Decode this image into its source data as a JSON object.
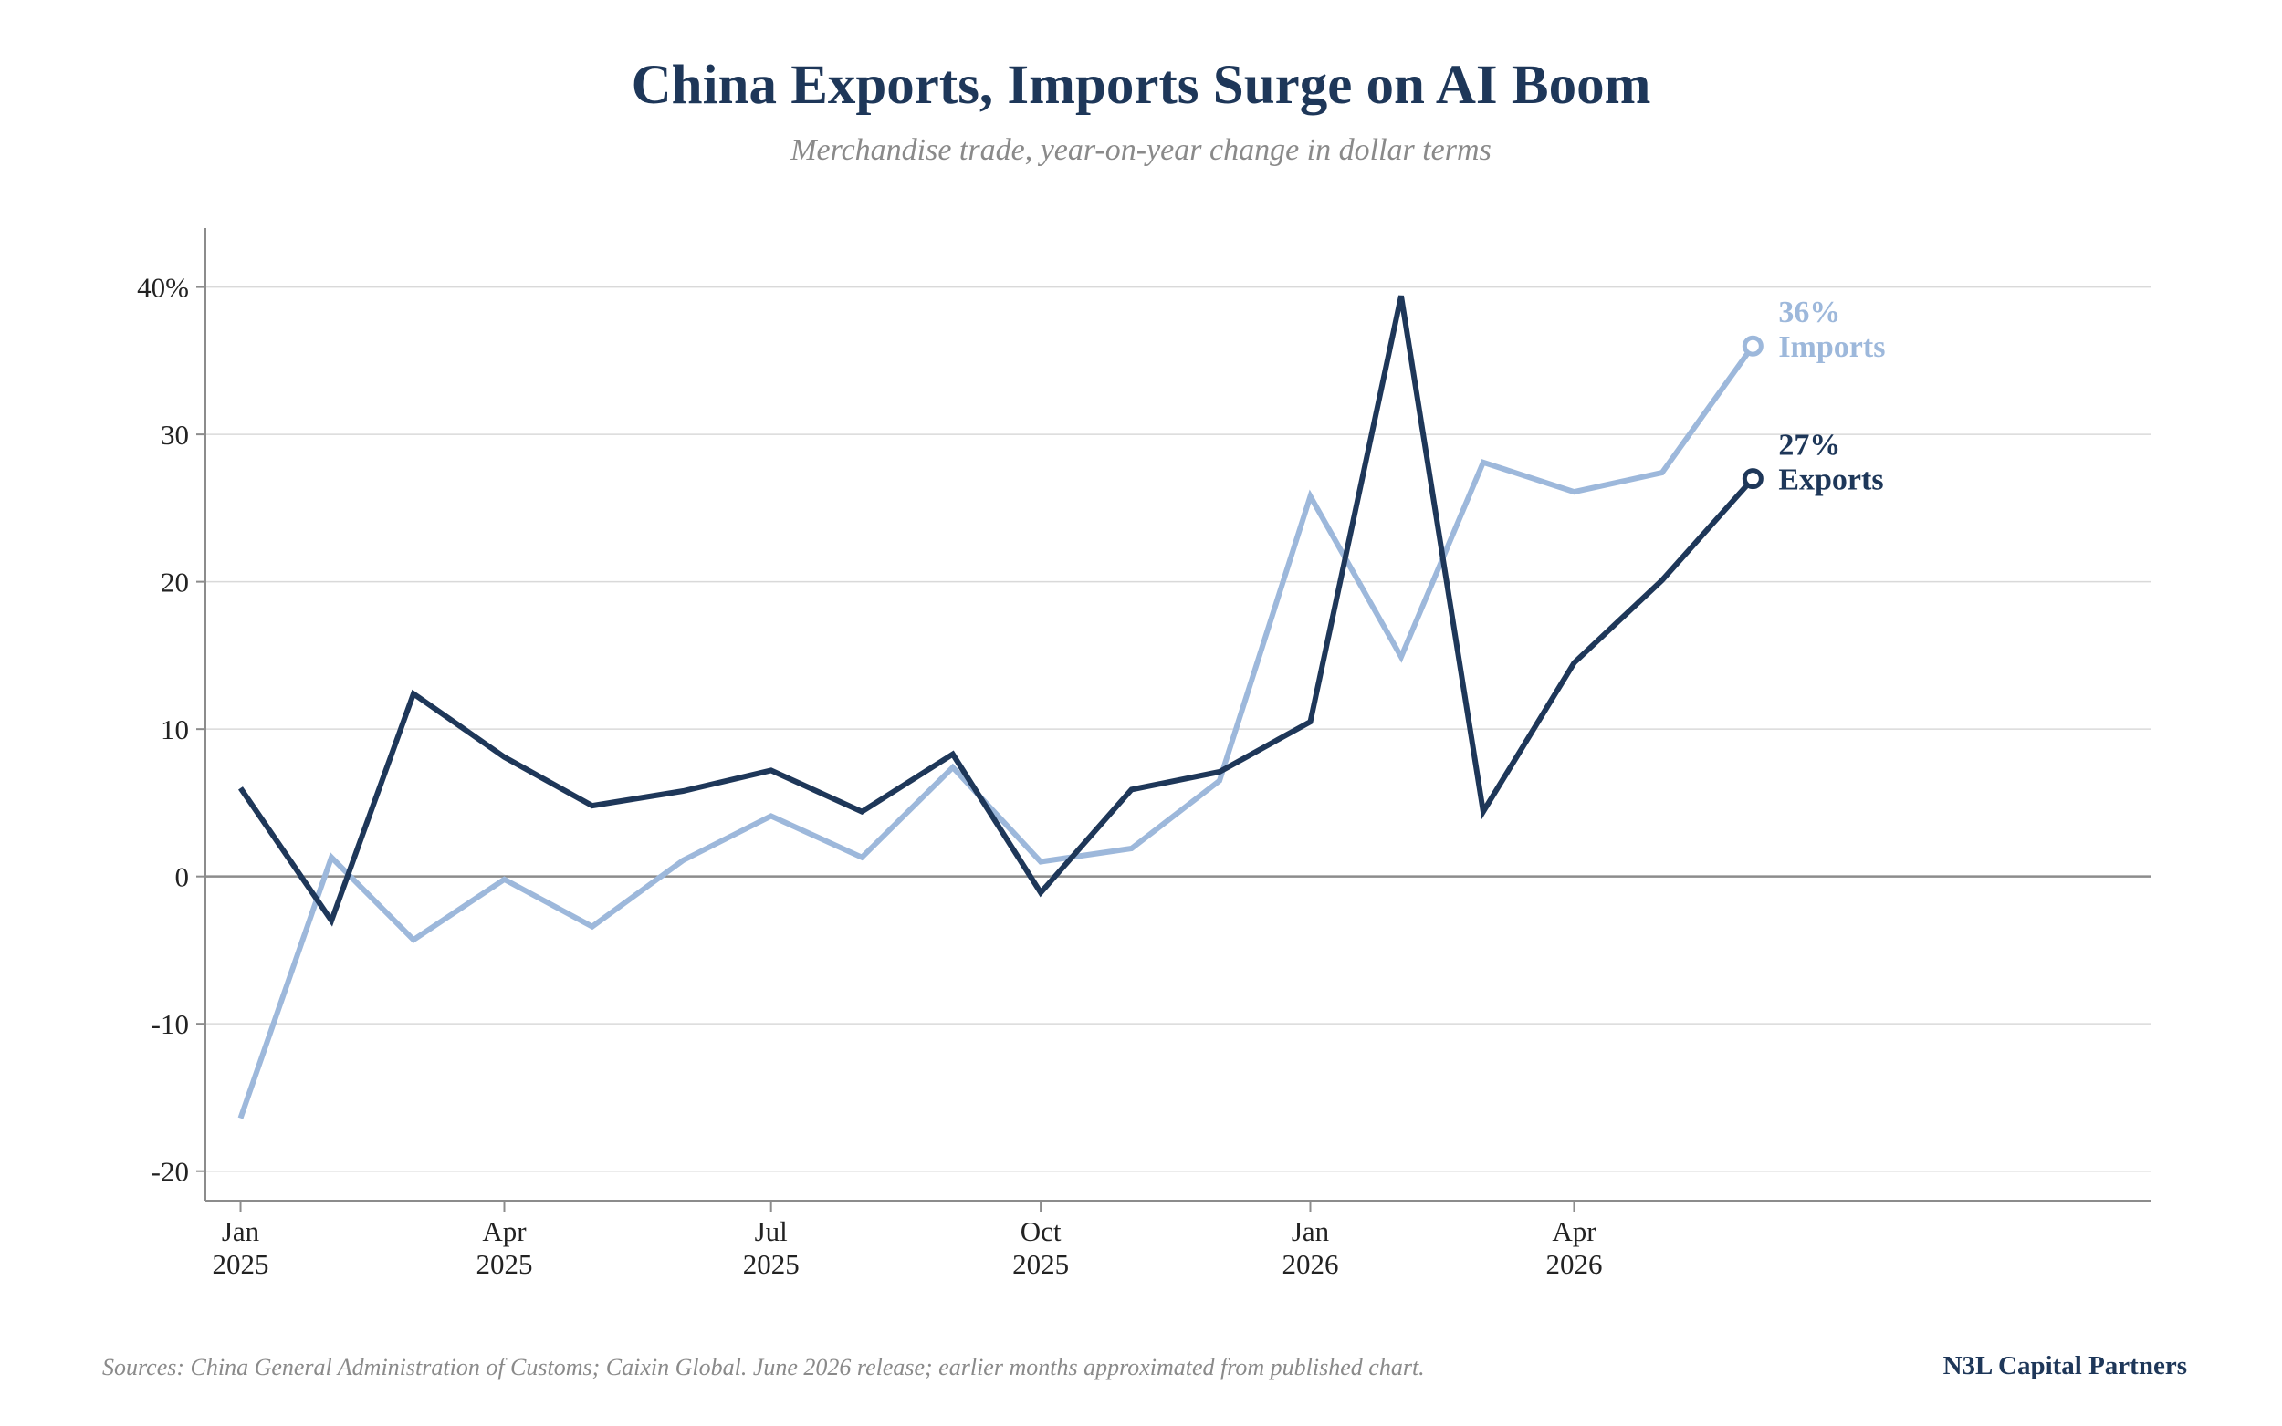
{
  "chart_data": {
    "type": "line",
    "title": "China Exports, Imports Surge on AI Boom",
    "subtitle": "Merchandise trade, year-on-year change in dollar terms",
    "xlabel": "",
    "ylabel": "",
    "ylim": [
      -22,
      44
    ],
    "xlim": [
      "2024-12-20",
      "2026-10-15"
    ],
    "grid": true,
    "legend": "inline end labels",
    "x": [
      "2025-01",
      "2025-02",
      "2025-03",
      "2025-04",
      "2025-05",
      "2025-06",
      "2025-07",
      "2025-08",
      "2025-09",
      "2025-10",
      "2025-11",
      "2025-12",
      "2026-01",
      "2026-02",
      "2026-03",
      "2026-04",
      "2026-05",
      "2026-06"
    ],
    "x_ticks": [
      {
        "x": "2025-01",
        "month": "Jan",
        "year": "2025"
      },
      {
        "x": "2025-04",
        "month": "Apr",
        "year": "2025"
      },
      {
        "x": "2025-07",
        "month": "Jul",
        "year": "2025"
      },
      {
        "x": "2025-10",
        "month": "Oct",
        "year": "2025"
      },
      {
        "x": "2026-01",
        "month": "Jan",
        "year": "2026"
      },
      {
        "x": "2026-04",
        "month": "Apr",
        "year": "2026"
      }
    ],
    "y_ticks": [
      {
        "value": 40,
        "label": "40%"
      },
      {
        "value": 30,
        "label": "30"
      },
      {
        "value": 20,
        "label": "20"
      },
      {
        "value": 10,
        "label": "10"
      },
      {
        "value": 0,
        "label": "0"
      },
      {
        "value": -10,
        "label": "-10"
      },
      {
        "value": -20,
        "label": "-20"
      }
    ],
    "series": [
      {
        "name": "Exports",
        "end_value_label": "27%",
        "color": "#1e3759",
        "values": [
          6.0,
          -3.0,
          12.4,
          8.1,
          4.8,
          5.8,
          7.2,
          4.4,
          8.3,
          -1.1,
          5.9,
          7.1,
          10.5,
          39.4,
          4.4,
          14.5,
          20.1,
          27.0
        ]
      },
      {
        "name": "Imports",
        "end_value_label": "36%",
        "color": "#9db8db",
        "values": [
          -16.4,
          1.3,
          -4.3,
          -0.2,
          -3.4,
          1.1,
          4.1,
          1.3,
          7.4,
          1.0,
          1.9,
          6.5,
          25.8,
          14.9,
          28.1,
          26.1,
          27.4,
          36.0
        ]
      }
    ]
  },
  "footer": {
    "source": "Sources: China General Administration of Customs; Caixin Global. June 2026 release; earlier months approximated from published chart.",
    "brand": "N3L Capital Partners"
  },
  "colors": {
    "exports": "#1e3759",
    "imports": "#9db8db",
    "gridline": "#d9d9d9",
    "zeroline": "#8c8c8c",
    "axis": "#8c8c8c"
  }
}
